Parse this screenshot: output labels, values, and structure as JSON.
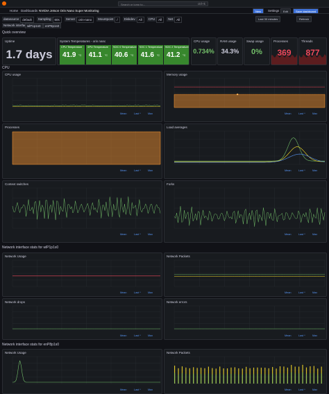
{
  "topbar": {
    "search": "Search or jump to...",
    "shortcut": "ctrl+k"
  },
  "breadcrumbs": [
    "Home",
    "Dashboards",
    "NVIDIA Jetson Orin Nano Super Monitoring"
  ],
  "toolbar": {
    "new": "New",
    "settings": "Settings",
    "edit": "Edit",
    "save": "Save dashboard",
    "time_range": "Last 30 minutes",
    "refresh": "Refresh"
  },
  "variables": [
    {
      "label": "datasource",
      "value": "default"
    },
    {
      "label": "Sampling",
      "value": "60s"
    },
    {
      "label": "Server",
      "value": "orin-nano"
    },
    {
      "label": "Mountpoint",
      "value": "/"
    },
    {
      "label": "Diskdev",
      "value": "All"
    },
    {
      "label": "CPU",
      "value": "All"
    },
    {
      "label": "Net",
      "value": "All"
    }
  ],
  "interfaces": {
    "label": "Network interface",
    "values": [
      "wlP1p1s0",
      "enP8p1s0"
    ]
  },
  "rows": [
    "Quick overview",
    "CPU",
    "Network interface stats for wlP1p1s0",
    "Network interface stats for enP8p1s0"
  ],
  "stats": {
    "uptime": {
      "title": "Uptime",
      "value": "1.7 days"
    },
    "temps": {
      "title": "System Temperatures - orin nano",
      "items": [
        {
          "name": "CPU Temperature",
          "value": "41.9",
          "unit": "°C"
        },
        {
          "name": "GPU Temperature",
          "value": "41.1",
          "unit": "°C"
        },
        {
          "name": "SOC 0 Temperature",
          "value": "40.6",
          "unit": "°C"
        },
        {
          "name": "SOC 1 Temperature",
          "value": "41.6",
          "unit": "°C"
        },
        {
          "name": "SOC 2 Temperature",
          "value": "41.2",
          "unit": "°C"
        }
      ]
    },
    "cpu": {
      "title": "CPU usage",
      "value": "0.734%"
    },
    "ram": {
      "title": "RAM usage",
      "value": "34.3%"
    },
    "swap": {
      "title": "Swap usage",
      "value": "0%"
    },
    "processes": {
      "title": "Processes",
      "value": "369"
    },
    "threads": {
      "title": "Threads",
      "value": "877"
    }
  },
  "legend_headers": [
    "Mean",
    "Last *",
    "Max"
  ],
  "panels": [
    "CPU usage",
    "Memory usage",
    "Processes",
    "Load averages",
    "Context switches",
    "Forks",
    "Network Usage",
    "Network Packets",
    "Network drops",
    "Network errors",
    "Network Usage",
    "Network Packets"
  ]
}
